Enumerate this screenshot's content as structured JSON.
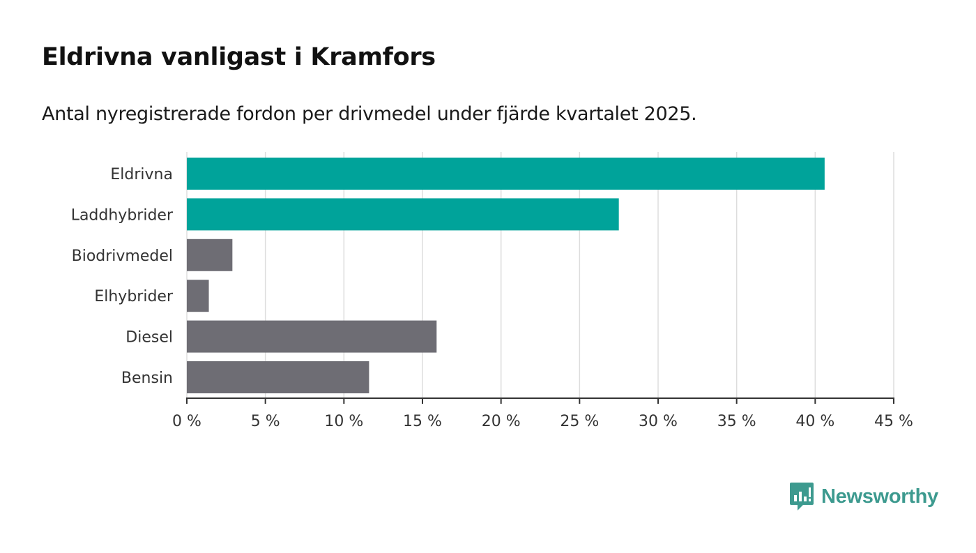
{
  "title": "Eldrivna vanligast i Kramfors",
  "subtitle": "Antal nyregistrerade fordon per drivmedel under fjärde kvartalet 2025.",
  "colors": {
    "highlight": "#00a39a",
    "default": "#6e6d74",
    "grid": "#dddddd",
    "axis": "#333333",
    "brand": "#3d9a8f"
  },
  "chart_data": {
    "type": "bar",
    "orientation": "horizontal",
    "title": "Eldrivna vanligast i Kramfors",
    "subtitle": "Antal nyregistrerade fordon per drivmedel under fjärde kvartalet 2025.",
    "categories": [
      "Eldrivna",
      "Laddhybrider",
      "Biodrivmedel",
      "Elhybrider",
      "Diesel",
      "Bensin"
    ],
    "values": [
      40.6,
      27.5,
      2.9,
      1.4,
      15.9,
      11.6
    ],
    "highlighted": [
      true,
      true,
      false,
      false,
      false,
      false
    ],
    "unit": "%",
    "xlim": [
      0,
      45
    ],
    "xticks": [
      0,
      5,
      10,
      15,
      20,
      25,
      30,
      35,
      40,
      45
    ],
    "xtick_labels": [
      "0 %",
      "5 %",
      "10 %",
      "15 %",
      "20 %",
      "25 %",
      "30 %",
      "35 %",
      "40 %",
      "45 %"
    ],
    "xlabel": "",
    "ylabel": "",
    "grid": true
  },
  "brand": {
    "name": "Newsworthy",
    "icon": "newsworthy-logo-icon"
  }
}
